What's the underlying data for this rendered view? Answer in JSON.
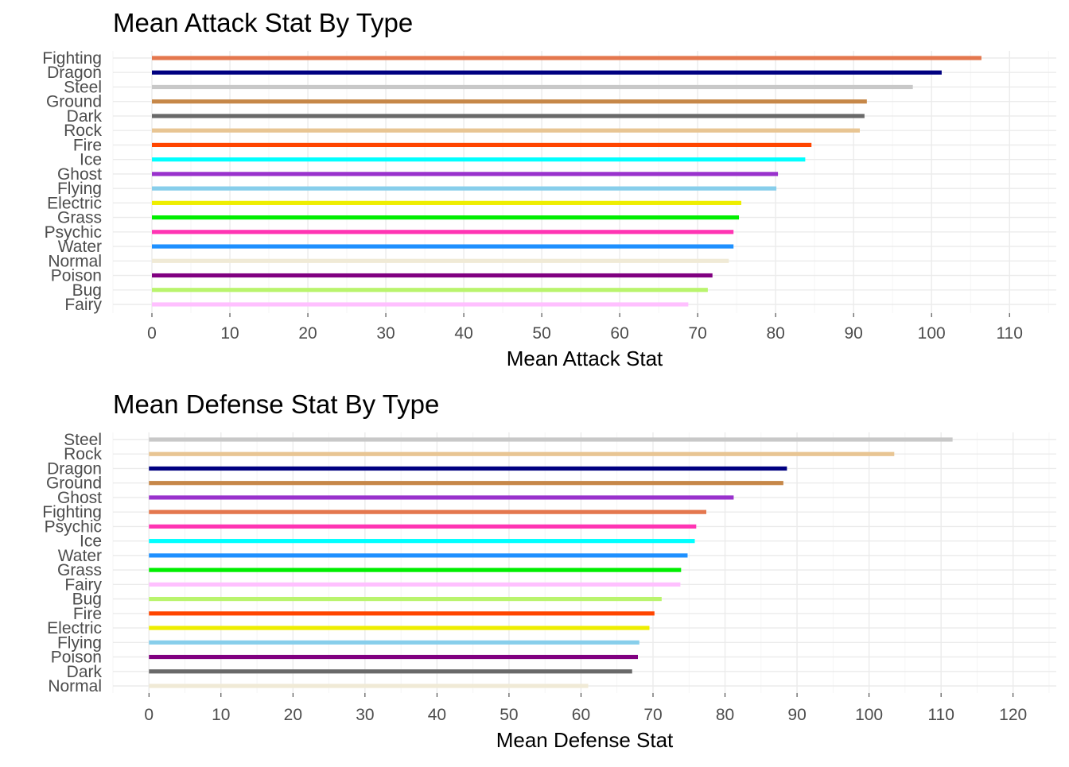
{
  "chart_data": [
    {
      "type": "bar",
      "orientation": "horizontal",
      "title": "Mean Attack Stat By Type",
      "xlabel": "Mean Attack Stat",
      "ylabel": "",
      "xlim": [
        -5,
        116
      ],
      "xticks": [
        0,
        10,
        20,
        30,
        40,
        50,
        60,
        70,
        80,
        90,
        100,
        110
      ],
      "grid": true,
      "categories": [
        "Fighting",
        "Dragon",
        "Steel",
        "Ground",
        "Dark",
        "Rock",
        "Fire",
        "Ice",
        "Ghost",
        "Flying",
        "Electric",
        "Grass",
        "Psychic",
        "Water",
        "Normal",
        "Poison",
        "Bug",
        "Fairy"
      ],
      "values": [
        106.4,
        101.3,
        97.6,
        91.7,
        91.4,
        90.8,
        84.6,
        83.8,
        80.3,
        80.1,
        75.6,
        75.3,
        74.6,
        74.6,
        74.0,
        71.9,
        71.3,
        68.8
      ],
      "colors": [
        "#e4774e",
        "#000080",
        "#c8c8c8",
        "#c68748",
        "#696969",
        "#e8c593",
        "#ff4500",
        "#00ffff",
        "#9932cc",
        "#87ceeb",
        "#eeee00",
        "#00ee00",
        "#ff34b3",
        "#1e90ff",
        "#f0ead6",
        "#800080",
        "#b9f46d",
        "#ffc0ff"
      ]
    },
    {
      "type": "bar",
      "orientation": "horizontal",
      "title": "Mean Defense Stat By Type",
      "xlabel": "Mean Defense Stat",
      "ylabel": "",
      "xlim": [
        -5,
        126
      ],
      "xticks": [
        0,
        10,
        20,
        30,
        40,
        50,
        60,
        70,
        80,
        90,
        100,
        110,
        120
      ],
      "grid": true,
      "categories": [
        "Steel",
        "Rock",
        "Dragon",
        "Ground",
        "Ghost",
        "Fighting",
        "Psychic",
        "Ice",
        "Water",
        "Grass",
        "Fairy",
        "Bug",
        "Fire",
        "Electric",
        "Flying",
        "Poison",
        "Dark",
        "Normal"
      ],
      "values": [
        111.6,
        103.5,
        88.6,
        88.1,
        81.2,
        77.4,
        76.0,
        75.8,
        74.8,
        73.9,
        73.8,
        71.2,
        70.2,
        69.5,
        68.1,
        67.9,
        67.1,
        61.0
      ],
      "colors": [
        "#c8c8c8",
        "#e8c593",
        "#000080",
        "#c68748",
        "#9932cc",
        "#e4774e",
        "#ff34b3",
        "#00ffff",
        "#1e90ff",
        "#00ee00",
        "#ffc0ff",
        "#b9f46d",
        "#ff4500",
        "#eeee00",
        "#87ceeb",
        "#800080",
        "#696969",
        "#f0ead6"
      ]
    }
  ]
}
